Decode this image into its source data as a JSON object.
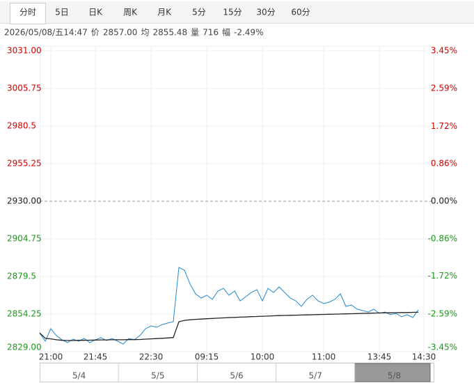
{
  "tabs": [
    "分时",
    "5日",
    "日K",
    "周K",
    "月K",
    "5分",
    "15分",
    "30分",
    "60分"
  ],
  "info": [
    "2026/05/08/五14:47",
    "价",
    "2857.00",
    "均",
    "2855.48",
    "量",
    "716",
    "幅",
    "-2.49%"
  ],
  "chart_data": {
    "type": "line",
    "categories": [
      null,
      null,
      "21:00",
      null,
      null,
      null,
      null,
      null,
      null,
      null,
      "21:45",
      null,
      null,
      null,
      null,
      null,
      null,
      null,
      null,
      null,
      "22:30",
      null,
      null,
      null,
      null,
      null,
      null,
      null,
      null,
      null,
      "09:15",
      null,
      null,
      null,
      null,
      null,
      null,
      null,
      null,
      null,
      "10:00",
      null,
      null,
      null,
      null,
      null,
      null,
      null,
      null,
      null,
      null,
      "11:00",
      null,
      null,
      null,
      null,
      null,
      null,
      null,
      null,
      null,
      "13:45",
      null,
      null,
      null,
      null,
      null,
      null,
      null,
      "14:30",
      null
    ],
    "series": [
      {
        "color": "#2288cc",
        "values": [
          2841.6,
          2836.0,
          2844.4,
          2839.8,
          2837.0,
          2835.1,
          2837.4,
          2836.0,
          2837.9,
          2835.1,
          2837.0,
          2838.4,
          2836.5,
          2837.9,
          2836.0,
          2834.1,
          2837.9,
          2837.0,
          2839.8,
          2844.4,
          2846.3,
          2845.4,
          2847.2,
          2848.2,
          2849.1,
          2885.6,
          2883.7,
          2874.4,
          2867.8,
          2865.0,
          2866.9,
          2864.1,
          2869.7,
          2871.5,
          2866.9,
          2869.7,
          2863.1,
          2865.9,
          2868.7,
          2870.6,
          2863.1,
          2871.5,
          2868.7,
          2872.5,
          2868.7,
          2865.0,
          2863.1,
          2859.4,
          2864.1,
          2866.9,
          2863.1,
          2861.3,
          2862.2,
          2864.1,
          2867.8,
          2859.4,
          2860.3,
          2857.5,
          2856.6,
          2855.6,
          2857.5,
          2854.7,
          2855.6,
          2853.8,
          2854.7,
          2852.4,
          2853.8,
          2851.9,
          2857.0,
          null,
          null
        ]
      },
      {
        "color": "#222222",
        "values": [
          2841.6,
          2838.0,
          2837.6,
          2837.0,
          2836.6,
          2836.5,
          2836.5,
          2836.6,
          2836.6,
          2836.7,
          2836.8,
          2836.9,
          2836.9,
          2837.0,
          2837.0,
          2837.0,
          2837.1,
          2837.1,
          2837.2,
          2837.4,
          2837.6,
          2837.8,
          2838.0,
          2838.2,
          2838.5,
          2849.1,
          2850.0,
          2850.4,
          2850.7,
          2850.9,
          2851.1,
          2851.3,
          2851.5,
          2851.7,
          2851.9,
          2852.0,
          2852.2,
          2852.3,
          2852.5,
          2852.6,
          2852.8,
          2852.9,
          2853.1,
          2853.2,
          2853.3,
          2853.4,
          2853.5,
          2853.6,
          2853.7,
          2853.8,
          2853.9,
          2854.0,
          2854.1,
          2854.2,
          2854.3,
          2854.4,
          2854.5,
          2854.6,
          2854.7,
          2854.8,
          2854.9,
          2855.0,
          2855.1,
          2855.1,
          2855.2,
          2855.3,
          2855.3,
          2855.4,
          2855.48,
          null,
          null
        ]
      }
    ],
    "ylim": [
      2829.0,
      3031.0
    ],
    "yticks": [
      {
        "value": 2829,
        "label": "2829.00"
      },
      2854.25,
      2879.5,
      2904.75,
      {
        "value": 2930,
        "label": "2930.00"
      },
      2955.25,
      2980.5,
      3005.75,
      {
        "value": 3031,
        "label": "3031.00"
      }
    ],
    "y2lim": [
      -3.45,
      3.45
    ],
    "y2ticks": [
      {
        "value": -3.45,
        "label": "-3.45%"
      },
      {
        "value": -2.59,
        "label": "-2.59%"
      },
      {
        "value": -1.72,
        "label": "-1.72%"
      },
      {
        "value": -0.86,
        "label": "-0.86%"
      },
      {
        "value": 0,
        "label": "0.00%"
      },
      {
        "value": 0.86,
        "label": "0.86%"
      },
      {
        "value": 1.72,
        "label": "1.72%"
      },
      {
        "value": 2.59,
        "label": "2.59%"
      },
      {
        "value": 3.45,
        "label": "3.45%"
      }
    ],
    "grid": true
  },
  "navigator": {
    "dates": [
      "5/4",
      "5/5",
      "5/6",
      "5/7",
      "5/8"
    ]
  }
}
